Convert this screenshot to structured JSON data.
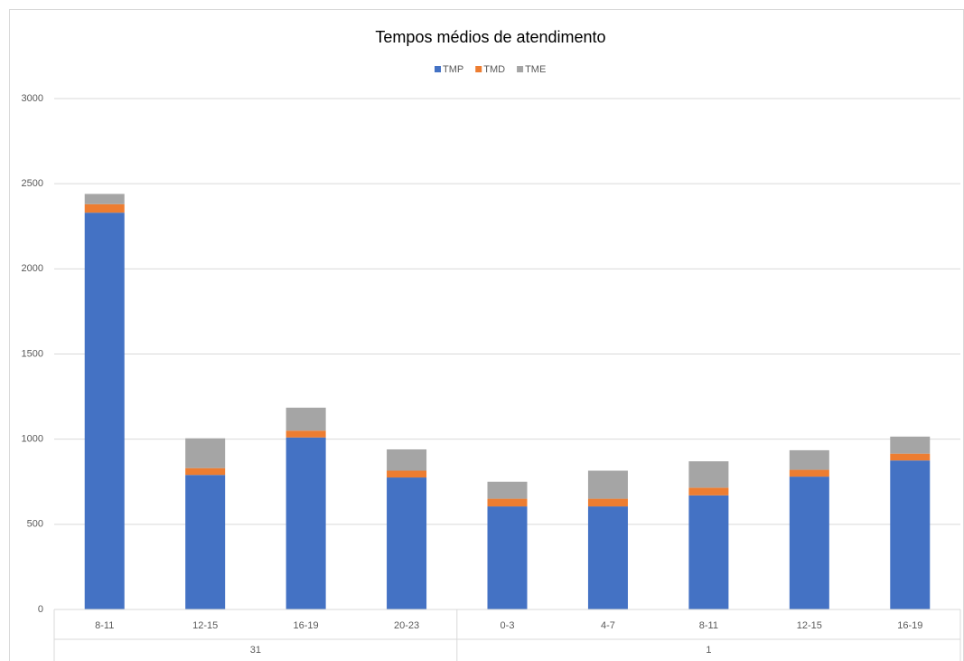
{
  "chart_data": {
    "type": "stacked_bar",
    "title": "Tempos médios de atendimento",
    "groups": [
      {
        "label": "31",
        "categories": [
          "8-11",
          "12-15",
          "16-19",
          "20-23"
        ]
      },
      {
        "label": "1",
        "categories": [
          "0-3",
          "4-7",
          "8-11",
          "12-15",
          "16-19"
        ]
      }
    ],
    "series": [
      {
        "name": "TMP",
        "color": "#4472c4",
        "values": [
          2330,
          790,
          1010,
          775,
          605,
          605,
          670,
          780,
          875
        ]
      },
      {
        "name": "TMD",
        "color": "#ed7d31",
        "values": [
          50,
          40,
          40,
          40,
          45,
          45,
          45,
          40,
          40
        ]
      },
      {
        "name": "TME",
        "color": "#a5a5a5",
        "values": [
          60,
          175,
          135,
          125,
          100,
          165,
          155,
          115,
          100
        ]
      }
    ],
    "ylim": [
      0,
      3000
    ],
    "yticks": [
      0,
      500,
      1000,
      1500,
      2000,
      2500,
      3000
    ],
    "grid": true,
    "legend": "top"
  }
}
